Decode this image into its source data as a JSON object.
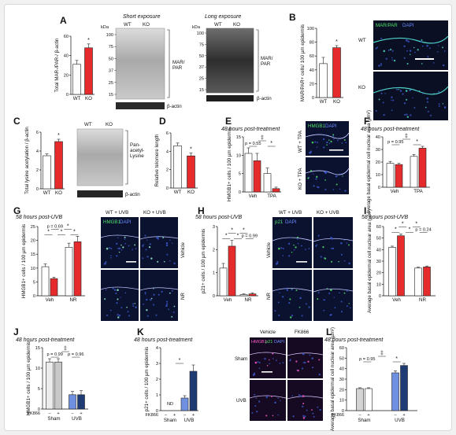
{
  "panels": [
    {
      "id": "A",
      "letter": "A"
    },
    {
      "id": "B",
      "letter": "B"
    },
    {
      "id": "C",
      "letter": "C"
    },
    {
      "id": "D",
      "letter": "D"
    },
    {
      "id": "E",
      "letter": "E"
    },
    {
      "id": "F",
      "letter": "F"
    },
    {
      "id": "G",
      "letter": "G"
    },
    {
      "id": "H",
      "letter": "H"
    },
    {
      "id": "I",
      "letter": "I"
    },
    {
      "id": "J",
      "letter": "J"
    },
    {
      "id": "K",
      "letter": "K"
    },
    {
      "id": "L",
      "letter": "L"
    }
  ],
  "blot_A": {
    "short_title": "Short exposure",
    "long_title": "Long exposure",
    "kda": "kDa",
    "markers": [
      "100",
      "75",
      "50",
      "37",
      "25",
      "15"
    ],
    "lanes": [
      "WT",
      "KO"
    ],
    "band_label": "MAR/\nPAR",
    "loading": "β-actin"
  },
  "blot_C": {
    "lanes": [
      "WT",
      "KO"
    ],
    "band_label": "Pan-\nacetyl-\nLysine",
    "loading": "β-actin"
  },
  "micro_B": {
    "lanes": [
      "WT",
      "KO"
    ],
    "stain_a": "MAR/PAR",
    "stain_b": "DAPI"
  },
  "micro_E": {
    "rows": [
      "WT + TPA",
      "KO + TPA"
    ],
    "stain_a": "HMGB1",
    "stain_b": "DAPI"
  },
  "micro_G": {
    "cols": [
      "WT + UVB",
      "KO + UVB"
    ],
    "rows": [
      "Vehicle",
      "NR"
    ],
    "stain_a": "HMGB1",
    "stain_b": "DAPI"
  },
  "micro_H": {
    "cols": [
      "WT + UVB",
      "KO + UVB"
    ],
    "rows": [
      "Vehicle",
      "NR"
    ],
    "stain_a": "p21",
    "stain_b": "DAPI"
  },
  "micro_K": {
    "cols": [
      "Vehicle",
      "FK866"
    ],
    "rows": [
      "Sham",
      "UVB"
    ],
    "stain_a": "HMGB1",
    "stain_b": "p21",
    "stain_c": "DAPI"
  },
  "colors": {
    "wt": "#ffffff",
    "ko": "#e52b2b",
    "wt_lt": "#d4d4d4",
    "ko_dk": "#1f3b73",
    "wt_blue": "#6f8fe0"
  },
  "chart_data": [
    {
      "panel": "A",
      "type": "bar",
      "ylabel": "Total MAR-/PAR-/ β-actin",
      "categories": [
        "WT",
        "KO"
      ],
      "values": [
        31,
        48
      ],
      "errors": [
        4,
        4
      ],
      "ylim": [
        0,
        60
      ],
      "yticks": [
        0,
        20,
        40,
        60
      ],
      "sig": [
        "*"
      ]
    },
    {
      "panel": "B",
      "type": "bar",
      "ylabel": "MAR/PAR+ cells/ 100 µm epidermis",
      "categories": [
        "WT",
        "KO"
      ],
      "values": [
        49,
        72
      ],
      "errors": [
        9,
        3
      ],
      "ylim": [
        0,
        100
      ],
      "yticks": [
        0,
        20,
        40,
        60,
        80,
        100
      ],
      "sig": [
        "*"
      ]
    },
    {
      "panel": "C",
      "type": "bar",
      "ylabel": "Total lysine acetylation / β-actin",
      "categories": [
        "WT",
        "KO"
      ],
      "values": [
        3.5,
        5.0
      ],
      "errors": [
        0.2,
        0.25
      ],
      "ylim": [
        0,
        6
      ],
      "yticks": [
        0,
        2,
        4,
        6
      ],
      "sig": [
        "*"
      ]
    },
    {
      "panel": "D",
      "type": "bar",
      "ylabel": "Relative telomere length",
      "categories": [
        "WT",
        "KO"
      ],
      "values": [
        4.6,
        3.5
      ],
      "errors": [
        0.3,
        0.3
      ],
      "ylim": [
        0,
        6
      ],
      "yticks": [
        0,
        2,
        4,
        6
      ],
      "sig": [
        "*"
      ]
    },
    {
      "panel": "E",
      "type": "bar",
      "title": "48 hours post-treatment",
      "ylabel": "HMGB1+ cells / 100 µm epidermis",
      "groups": [
        "Veh",
        "TPA"
      ],
      "series": [
        {
          "values": [
            10.5,
            5.0
          ],
          "errors": [
            1.5,
            1.5
          ]
        },
        {
          "values": [
            8.5,
            0.9
          ],
          "errors": [
            2,
            0.4
          ]
        }
      ],
      "ylim": [
        0,
        15
      ],
      "yticks": [
        0,
        5,
        10,
        15
      ],
      "sig": [
        "p = 0.55",
        "‡",
        "*"
      ]
    },
    {
      "panel": "F",
      "type": "bar",
      "title": "48 hours post-treatment",
      "ylabel": "Average basal epidermal cell nuclear area (µm²)",
      "groups": [
        "Veh",
        "TPA"
      ],
      "series": [
        {
          "values": [
            19,
            24.5
          ],
          "errors": [
            1.5,
            1.5
          ]
        },
        {
          "values": [
            18,
            31
          ],
          "errors": [
            1,
            1.5
          ]
        }
      ],
      "ylim": [
        0,
        40
      ],
      "yticks": [
        0,
        10,
        20,
        30,
        40
      ],
      "sig": [
        "p = 0.95",
        "‡",
        "*"
      ]
    },
    {
      "panel": "G",
      "type": "bar",
      "title": "58 hours post-UVB",
      "ylabel": "HMGB1+ cells / 100 µm epidermis",
      "groups": [
        "Veh",
        "NR"
      ],
      "series": [
        {
          "values": [
            10.5,
            17.5
          ],
          "errors": [
            1,
            1.5
          ]
        },
        {
          "values": [
            6.2,
            19.5
          ],
          "errors": [
            0.5,
            2
          ]
        }
      ],
      "ylim": [
        0,
        25
      ],
      "yticks": [
        0,
        5,
        10,
        15,
        20,
        25
      ],
      "sig": [
        "*",
        "p = 0.69",
        "*",
        "*",
        "*"
      ]
    },
    {
      "panel": "H",
      "type": "bar",
      "title": "58 hours post-UVB",
      "ylabel": "p21+ cells / 100 µm epidermis",
      "groups": [
        "Veh",
        "NR"
      ],
      "series": [
        {
          "values": [
            1.2,
            0.05
          ],
          "errors": [
            0.2,
            0.03
          ]
        },
        {
          "values": [
            2.15,
            0.08
          ],
          "errors": [
            0.25,
            0.05
          ]
        }
      ],
      "ylim": [
        0,
        3
      ],
      "yticks": [
        0,
        1,
        2,
        3
      ],
      "sig": [
        "*",
        "*",
        "*",
        "*",
        "p = 0.99"
      ]
    },
    {
      "panel": "I",
      "type": "bar",
      "title": "58 hours post-UVB",
      "ylabel": "Average basal epidermal cell nuclear area (µm²)",
      "groups": [
        "Veh",
        "NR"
      ],
      "series": [
        {
          "values": [
            42,
            24
          ],
          "errors": [
            1,
            0.8
          ]
        },
        {
          "values": [
            52,
            25
          ],
          "errors": [
            1.5,
            0.8
          ]
        }
      ],
      "ylim": [
        0,
        60
      ],
      "yticks": [
        0,
        10,
        20,
        30,
        40,
        50,
        60
      ],
      "sig": [
        "*",
        "*",
        "*",
        "*",
        "p = 0.24"
      ]
    },
    {
      "panel": "J",
      "type": "bar",
      "title": "48 hours post-treatment",
      "ylabel": "HMGB1+ cells / 100 µm epidermis",
      "groups": [
        "Sham",
        "UVB"
      ],
      "treatment": "FK866",
      "treat_marks": [
        "–",
        "+",
        "–",
        "+"
      ],
      "series": [
        {
          "values": [
            11.5,
            3.5
          ],
          "errors": [
            0.8,
            0.8
          ]
        },
        {
          "values": [
            11.5,
            3.5
          ],
          "errors": [
            0.8,
            1
          ]
        }
      ],
      "ylim": [
        0,
        15
      ],
      "yticks": [
        0,
        5,
        10,
        15
      ],
      "sig": [
        "p = 0.99",
        "‡",
        "p = 0.96"
      ]
    },
    {
      "panel": "K",
      "type": "bar",
      "title": "48 hours post-treatment",
      "ylabel": "p21+ cells / 100 µm epidermis",
      "groups": [
        "Sham",
        "UVB"
      ],
      "treatment": "FK866",
      "treat_marks": [
        "–",
        "+",
        "–",
        "+"
      ],
      "series": [
        {
          "values": [
            0,
            0.8
          ],
          "errors": [
            0,
            0.15
          ]
        },
        {
          "values": [
            0,
            2.5
          ],
          "errors": [
            0,
            0.4
          ]
        }
      ],
      "ylim": [
        0,
        4
      ],
      "yticks": [
        0,
        1,
        2,
        3,
        4
      ],
      "na_label": "ND",
      "sig": [
        "*"
      ]
    },
    {
      "panel": "L",
      "type": "bar",
      "title": "48 hours post-treatment",
      "ylabel": "Average basal epidermal cell nuclear area (µm²)",
      "groups": [
        "Sham",
        "UVB"
      ],
      "treatment": "FK866",
      "treat_marks": [
        "–",
        "+",
        "–",
        "+"
      ],
      "series": [
        {
          "values": [
            21,
            36
          ],
          "errors": [
            0.8,
            2
          ]
        },
        {
          "values": [
            21,
            43
          ],
          "errors": [
            0.8,
            2
          ]
        }
      ],
      "ylim": [
        0,
        60
      ],
      "yticks": [
        0,
        10,
        20,
        30,
        40,
        50,
        60
      ],
      "sig": [
        "p = 0.95",
        "‡",
        "*"
      ]
    }
  ]
}
